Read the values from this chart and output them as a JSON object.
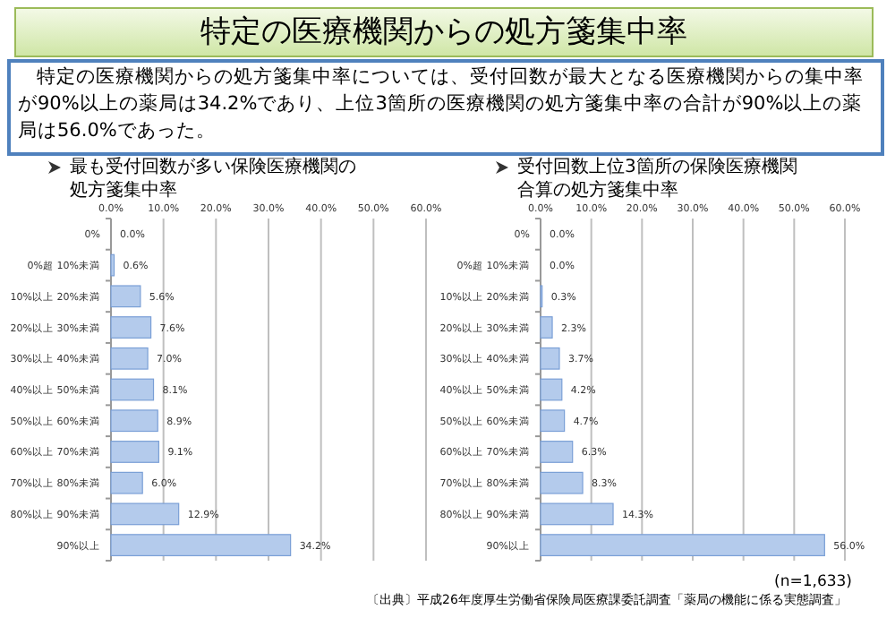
{
  "chart_data": [
    {
      "type": "other",
      "title": "特定の医療機関からの処方箋集中率",
      "annotations": [
        "特定の医療機関からの処方箋集中率については、受付回数が最大となる医療機関からの集中率が90%以上の薬局は34.2%であり、上位3箇所の医療機関の処方箋集中率の合計が90%以上の薬局は56.0%であった。",
        "〔出典〕平成26年度厚生労働省保険局医療課委託調査「薬局の機能に係る実態調査」"
      ]
    },
    {
      "type": "bar",
      "orientation": "horizontal",
      "title": "最も受付回数が多い保険医療機関の処方箋集中率",
      "categories": [
        "0%",
        "0%超 10%未満",
        "10%以上 20%未満",
        "20%以上 30%未満",
        "30%以上 40%未満",
        "40%以上 50%未満",
        "50%以上 60%未満",
        "60%以上 70%未満",
        "70%以上 80%未満",
        "80%以上 90%未満",
        "90%以上"
      ],
      "values": [
        0.0,
        0.6,
        5.6,
        7.6,
        7.0,
        8.1,
        8.9,
        9.1,
        6.0,
        12.9,
        34.2
      ],
      "value_labels": [
        "0.0%",
        "0.6%",
        "5.6%",
        "7.6%",
        "7.0%",
        "8.1%",
        "8.9%",
        "9.1%",
        "6.0%",
        "12.9%",
        "34.2%"
      ],
      "color": "#b4cbec",
      "xlim": [
        0,
        60
      ],
      "xticks": [
        {
          "value": 0,
          "label": "0.0%"
        },
        {
          "value": 10,
          "label": "10.0%"
        },
        {
          "value": 20,
          "label": "20.0%"
        },
        {
          "value": 30,
          "label": "30.0%"
        },
        {
          "value": 40,
          "label": "40.0%"
        },
        {
          "value": 50,
          "label": "50.0%"
        },
        {
          "value": 60,
          "label": "60.0%"
        }
      ],
      "grid": "x"
    },
    {
      "type": "bar",
      "orientation": "horizontal",
      "title": "受付回数上位3箇所の保険医療機関合算の処方箋集中率",
      "categories": [
        "0%",
        "0%超 10%未満",
        "10%以上 20%未満",
        "20%以上 30%未満",
        "30%以上 40%未満",
        "40%以上 50%未満",
        "50%以上 60%未満",
        "60%以上 70%未満",
        "70%以上 80%未満",
        "80%以上 90%未満",
        "90%以上"
      ],
      "values": [
        0.0,
        0.0,
        0.3,
        2.3,
        3.7,
        4.2,
        4.7,
        6.3,
        8.3,
        14.3,
        56.0
      ],
      "value_labels": [
        "0.0%",
        "0.0%",
        "0.3%",
        "2.3%",
        "3.7%",
        "4.2%",
        "4.7%",
        "6.3%",
        "8.3%",
        "14.3%",
        "56.0%"
      ],
      "color": "#b4cbec",
      "xlim": [
        0,
        60
      ],
      "xticks": [
        {
          "value": 0,
          "label": "0.0%"
        },
        {
          "value": 10,
          "label": "10.0%"
        },
        {
          "value": 20,
          "label": "20.0%"
        },
        {
          "value": 30,
          "label": "30.0%"
        },
        {
          "value": 40,
          "label": "40.0%"
        },
        {
          "value": 50,
          "label": "50.0%"
        },
        {
          "value": 60,
          "label": "60.0%"
        }
      ],
      "grid": "x",
      "annotations": [
        "(n=1,633)"
      ]
    }
  ]
}
